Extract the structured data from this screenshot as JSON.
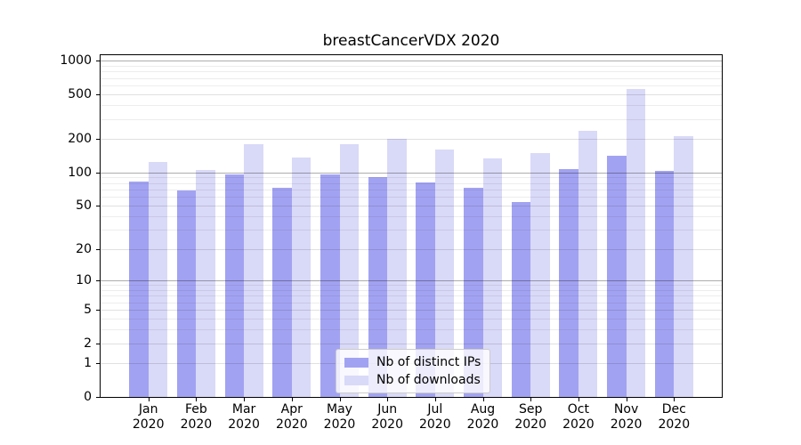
{
  "title": "breastCancerVDX 2020",
  "chart_data": {
    "type": "bar",
    "title": "breastCancerVDX 2020",
    "months": [
      "Jan",
      "Feb",
      "Mar",
      "Apr",
      "May",
      "Jun",
      "Jul",
      "Aug",
      "Sep",
      "Oct",
      "Nov",
      "Dec"
    ],
    "year_label": "2020",
    "series": [
      {
        "name": "Nb of distinct IPs",
        "color": "#a2a2f2",
        "values": [
          82,
          69,
          95,
          73,
          95,
          90,
          81,
          73,
          54,
          107,
          142,
          104
        ]
      },
      {
        "name": "Nb of downloads",
        "color": "#d9d9f8",
        "values": [
          123,
          105,
          178,
          137,
          181,
          199,
          160,
          134,
          150,
          236,
          556,
          212
        ]
      }
    ],
    "yticks": [
      0,
      1,
      2,
      5,
      10,
      20,
      50,
      100,
      200,
      500,
      1000
    ],
    "major_grid_values": [
      10,
      100,
      1000
    ],
    "scale": "log1p",
    "ylim": [
      0,
      1121
    ],
    "grid": true,
    "legend_position": "lower center"
  }
}
